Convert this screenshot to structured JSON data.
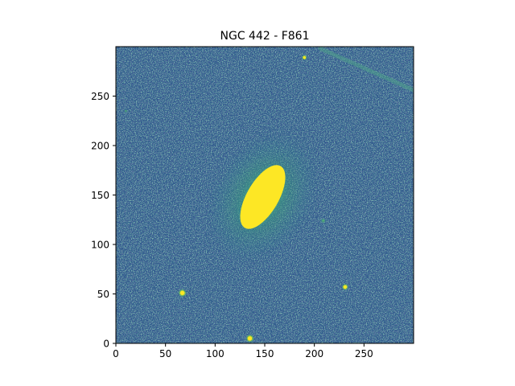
{
  "title": "NGC 442 - F861",
  "image_extent": {
    "x": [
      0,
      300
    ],
    "y": [
      0,
      300
    ]
  },
  "x_ticks": [
    {
      "value": 0,
      "label": "0"
    },
    {
      "value": 50,
      "label": "50"
    },
    {
      "value": 100,
      "label": "100"
    },
    {
      "value": 150,
      "label": "150"
    },
    {
      "value": 200,
      "label": "200"
    },
    {
      "value": 250,
      "label": "250"
    }
  ],
  "y_ticks": [
    {
      "value": 0,
      "label": "0"
    },
    {
      "value": 50,
      "label": "50"
    },
    {
      "value": 100,
      "label": "100"
    },
    {
      "value": 150,
      "label": "150"
    },
    {
      "value": 200,
      "label": "200"
    },
    {
      "value": 250,
      "label": "250"
    }
  ],
  "colormap": {
    "background": "#2f5c8d",
    "dark": "#2b2f74",
    "mid": "#3b8f8a",
    "halo": "#5ccb5f",
    "core": "#fde725"
  },
  "sources": [
    {
      "name": "galaxy-core",
      "x": 148,
      "y": 148,
      "rx": 16,
      "ry": 36,
      "tilt_deg": 30,
      "brightness": "saturated"
    },
    {
      "name": "star-1",
      "x": 67,
      "y": 51,
      "r": 2.5,
      "brightness": "saturated"
    },
    {
      "name": "star-2",
      "x": 135,
      "y": 5,
      "r": 2.5,
      "brightness": "saturated"
    },
    {
      "name": "star-3",
      "x": 231,
      "y": 57,
      "r": 2,
      "brightness": "saturated"
    },
    {
      "name": "star-4",
      "x": 190,
      "y": 289,
      "r": 1.6,
      "brightness": "bright"
    },
    {
      "name": "faint-source-1",
      "x": 209,
      "y": 124,
      "r": 1.8,
      "brightness": "faint"
    },
    {
      "name": "faint-source-2",
      "x": 10,
      "y": 235,
      "r": 1.2,
      "brightness": "faint"
    }
  ],
  "streak": {
    "from": {
      "x": 206,
      "y": 298
    },
    "to": {
      "x": 300,
      "y": 256
    }
  }
}
